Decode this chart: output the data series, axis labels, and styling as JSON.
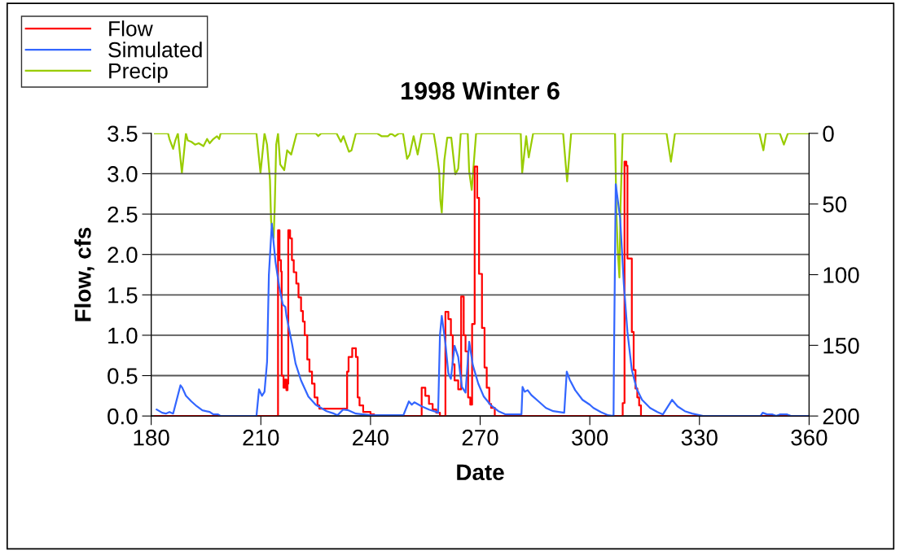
{
  "chart_data": {
    "type": "line",
    "title": "1998 Winter 6",
    "xlabel": "Date",
    "ylabel": "Flow, cfs",
    "xlim": [
      180,
      360
    ],
    "xticks": [
      180,
      210,
      240,
      270,
      300,
      330,
      360
    ],
    "ylim": [
      0,
      3.5
    ],
    "yticks": [
      {
        "value": 0,
        "label": "0.0"
      },
      {
        "value": 0.5,
        "label": "0.5"
      },
      {
        "value": 1,
        "label": "1.0"
      },
      {
        "value": 1.5,
        "label": "1.5"
      },
      {
        "value": 2,
        "label": "2.0"
      },
      {
        "value": 2.5,
        "label": "2.5"
      },
      {
        "value": 3,
        "label": "3.0"
      },
      {
        "value": 3.5,
        "label": "3.5"
      }
    ],
    "y2lim": [
      200,
      0
    ],
    "y2ticks": [
      0,
      50,
      100,
      150,
      200
    ],
    "grid": "y",
    "legend": "top left",
    "marker": "none",
    "line_style": "solid",
    "series": [
      {
        "name": "Flow",
        "color": "#ff0000",
        "type": "step",
        "x": [
          181,
          214.5,
          214.7,
          215.1,
          215.5,
          215.7,
          216.2,
          216.6,
          217,
          217.3,
          217.5,
          218,
          218.5,
          219,
          219.7,
          220.3,
          221,
          221.5,
          222,
          222.7,
          223.3,
          224,
          224.7,
          225.5,
          226,
          233.3,
          233.6,
          234,
          235,
          236,
          236.5,
          237,
          238,
          240,
          241,
          253.8,
          254,
          255,
          256,
          257,
          258,
          259,
          260.5,
          261.3,
          262,
          262.5,
          263,
          264,
          264.8,
          265.5,
          266,
          266.7,
          267.3,
          267.8,
          268.5,
          269.2,
          269.7,
          270.5,
          271.2,
          271.8,
          272.5,
          273,
          274,
          308.8,
          309,
          309.5,
          310,
          310.3,
          311,
          311.5,
          312,
          312.5,
          313,
          313.5,
          314,
          360
        ],
        "values": [
          0,
          0,
          2.3,
          1.93,
          1.79,
          0.5,
          0.35,
          0.45,
          0.32,
          0.4,
          2.3,
          2.2,
          1.93,
          1.78,
          1.64,
          1.47,
          1.3,
          1.17,
          1.0,
          0.7,
          0.55,
          0.4,
          0.23,
          0.13,
          0.09,
          0.09,
          0.55,
          0.73,
          0.84,
          0.73,
          0.23,
          0.13,
          0.05,
          0.02,
          0,
          0,
          0.35,
          0.25,
          0.15,
          0.08,
          0.04,
          0,
          1.29,
          1.2,
          1.0,
          0.64,
          0.44,
          0.33,
          1.48,
          1.0,
          0.8,
          0.23,
          0.14,
          1.14,
          3.09,
          2.7,
          1.76,
          1.09,
          0.6,
          0.35,
          0.15,
          0.1,
          0,
          0,
          0.16,
          3.15,
          3.1,
          1.95,
          1.95,
          1.04,
          0.57,
          0.34,
          0.23,
          0.13,
          0,
          0
        ]
      },
      {
        "name": "Simulated",
        "color": "#3366ff",
        "x": [
          181.5,
          183,
          184,
          185,
          186,
          188,
          188.5,
          189.5,
          191,
          192.5,
          194,
          196,
          197,
          198.3,
          199,
          208.8,
          209.5,
          210.3,
          211,
          211.7,
          212.2,
          213,
          214,
          215,
          216,
          216.7,
          217,
          218.5,
          219.5,
          221,
          223,
          225,
          228,
          230,
          231,
          232.5,
          234,
          236,
          238,
          240,
          249,
          250.5,
          251.3,
          252,
          254,
          256,
          258,
          258.5,
          259,
          259.5,
          260.5,
          261.3,
          262,
          263,
          264,
          265,
          266,
          266.7,
          267,
          268,
          269.5,
          271,
          273,
          275,
          277,
          281.3,
          281.6,
          282.2,
          283,
          284,
          286,
          288,
          290,
          293,
          293.7,
          294.5,
          296,
          298,
          300,
          301,
          303,
          305,
          306.5,
          306.6,
          307.1,
          308.3,
          309.3,
          310.3,
          311.5,
          312.8,
          314.3,
          316.5,
          318.5,
          320,
          322.5,
          324,
          326,
          328,
          330,
          331,
          346.7,
          347.3,
          348.5,
          350,
          351,
          352,
          354,
          355,
          360
        ],
        "values": [
          0.08,
          0.04,
          0.03,
          0.05,
          0.03,
          0.38,
          0.35,
          0.25,
          0.18,
          0.12,
          0.07,
          0.05,
          0.02,
          0.02,
          0,
          0,
          0.33,
          0.25,
          0.3,
          0.67,
          1.75,
          2.38,
          1.91,
          1.61,
          1.38,
          1.35,
          1.24,
          0.9,
          0.65,
          0.44,
          0.24,
          0.14,
          0.06,
          0.03,
          0.01,
          0.08,
          0.07,
          0.03,
          0.02,
          0.01,
          0.01,
          0.18,
          0.14,
          0.17,
          0.12,
          0.08,
          0.05,
          0.04,
          1.0,
          1.24,
          0.9,
          0.53,
          0.46,
          0.87,
          0.73,
          0.36,
          0.29,
          0.73,
          0.92,
          0.63,
          0.4,
          0.24,
          0.13,
          0.06,
          0.02,
          0.02,
          0.36,
          0.3,
          0.32,
          0.26,
          0.18,
          0.1,
          0.06,
          0.04,
          0.55,
          0.45,
          0.32,
          0.2,
          0.14,
          0.1,
          0.05,
          0.01,
          0,
          0.64,
          2.87,
          2.45,
          1.64,
          1.04,
          0.57,
          0.34,
          0.2,
          0.1,
          0.05,
          0.02,
          0.2,
          0.12,
          0.06,
          0.03,
          0.01,
          0,
          0,
          0.04,
          0.02,
          0.02,
          0,
          0.02,
          0.02,
          0,
          0
        ]
      },
      {
        "name": "Precip",
        "color": "#99cc00",
        "axis": "y2",
        "x": [
          181,
          184.6,
          185,
          186,
          186.6,
          187.3,
          188.4,
          189.5,
          190,
          191,
          192,
          193,
          194.3,
          195.3,
          196,
          197,
          198,
          198.6,
          199,
          208.8,
          209.9,
          211,
          211.7,
          212.5,
          212.8,
          213.5,
          213.8,
          214.2,
          214.7,
          215.3,
          216.4,
          217.2,
          218.3,
          219.4,
          219.8,
          225,
          225.7,
          226.5,
          230.7,
          231.9,
          232.6,
          234.1,
          234.8,
          236,
          241.8,
          243,
          244.8,
          245.6,
          246.7,
          247.8,
          248.9,
          250,
          250.7,
          251.8,
          252.9,
          254,
          257.3,
          258,
          258.8,
          259.1,
          259.5,
          260.2,
          261,
          262.1,
          263.2,
          264,
          264.7,
          266.6,
          267,
          267.7,
          268.5,
          268.9,
          281.1,
          281.5,
          282.6,
          283.3,
          284.5,
          292.7,
          293.8,
          294.9,
          306.9,
          307.3,
          307.7,
          308.1,
          308.4,
          309,
          321,
          322.2,
          323.3,
          346.4,
          347.5,
          348.2,
          352,
          353.1,
          354.2,
          360
        ],
        "values": [
          0,
          0,
          4,
          11,
          5,
          0,
          28,
          0,
          5,
          6,
          8,
          7,
          9,
          4,
          7,
          4,
          2,
          4,
          0,
          0,
          28,
          0,
          8,
          33,
          62,
          74,
          52,
          8,
          0,
          22,
          26,
          12,
          15,
          4,
          0,
          0,
          2,
          0,
          0,
          6,
          2,
          13,
          12,
          0,
          0,
          2,
          2,
          0,
          2,
          0,
          0,
          18,
          15,
          2,
          15,
          0,
          0,
          11,
          27,
          47,
          56,
          19,
          3,
          3,
          29,
          25,
          0,
          0,
          27,
          40,
          13,
          0,
          0,
          28,
          2,
          17,
          0,
          0,
          34,
          0,
          0,
          58,
          85,
          102,
          52,
          0,
          0,
          20,
          0,
          0,
          12,
          0,
          0,
          8,
          0,
          0
        ]
      }
    ]
  }
}
